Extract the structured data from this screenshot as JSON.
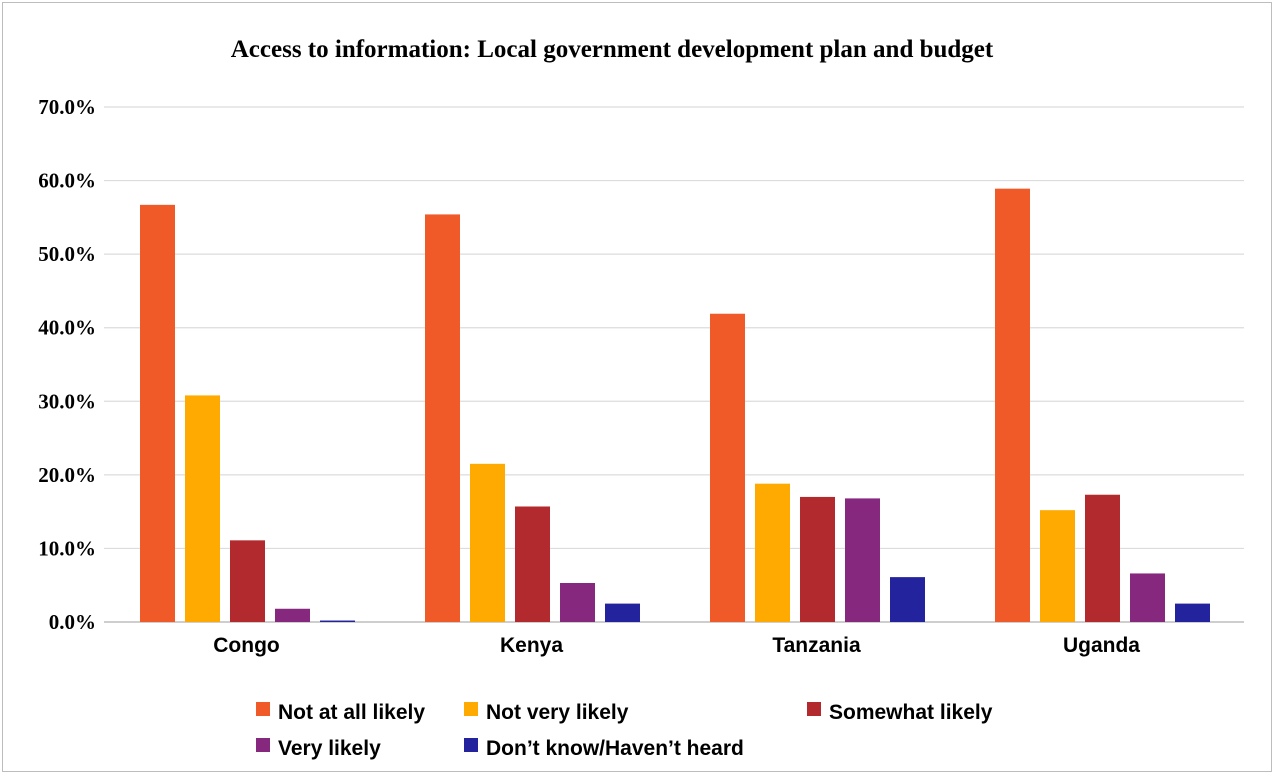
{
  "chart_data": {
    "type": "bar",
    "title": "Access to information:  Local government development plan and budget",
    "categories": [
      "Congo",
      "Kenya",
      "Tanzania",
      "Uganda"
    ],
    "ylim": [
      0,
      70
    ],
    "yticks": [
      "0.0%",
      "10.0%",
      "20.0%",
      "30.0%",
      "40.0%",
      "50.0%",
      "60.0%",
      "70.0%"
    ],
    "grid": true,
    "legend_position": "bottom",
    "series": [
      {
        "name": "Not at all likely",
        "color": "#F05A28",
        "values": [
          56.7,
          55.4,
          41.9,
          58.9
        ]
      },
      {
        "name": "Not very likely",
        "color": "#FFAA00",
        "values": [
          30.8,
          21.5,
          18.8,
          15.2
        ]
      },
      {
        "name": "Somewhat likely",
        "color": "#B22A2E",
        "values": [
          11.1,
          15.7,
          17.0,
          17.3
        ]
      },
      {
        "name": "Very likely",
        "color": "#86287E",
        "values": [
          1.8,
          5.3,
          16.8,
          6.6
        ]
      },
      {
        "name": "Don’t know/Haven’t heard",
        "color": "#23239E",
        "values": [
          0.2,
          2.5,
          6.1,
          2.5
        ]
      }
    ]
  }
}
